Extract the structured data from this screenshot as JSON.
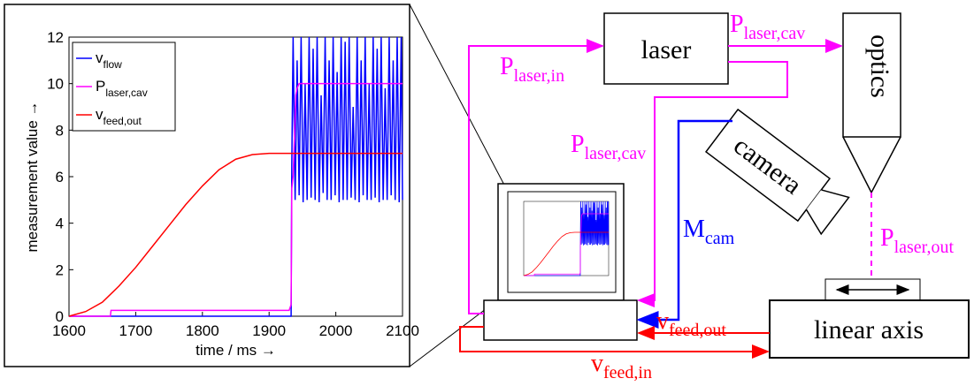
{
  "chart_data": {
    "type": "line",
    "xlabel": "time / ms →",
    "ylabel": "measurement value →",
    "xlim": [
      1600,
      2100
    ],
    "xticks": [
      1600,
      1700,
      1800,
      1900,
      2000,
      2100
    ],
    "ylim": [
      0,
      12
    ],
    "yticks": [
      0,
      2,
      4,
      6,
      8,
      10,
      12
    ],
    "legend": "upper left",
    "series": [
      {
        "name": {
          "text": "v",
          "sub": "flow"
        },
        "color": "#0000ff",
        "x": [
          1600,
          1933,
          1934,
          1936,
          1939,
          1942,
          1945,
          1948,
          1951,
          1954,
          1957,
          1960,
          1963,
          1966,
          1969,
          1972,
          1975,
          1978,
          1981,
          1984,
          1987,
          1990,
          1993,
          1996,
          1999,
          2002,
          2005,
          2008,
          2011,
          2014,
          2017,
          2020,
          2023,
          2026,
          2029,
          2032,
          2035,
          2038,
          2041,
          2044,
          2047,
          2050,
          2053,
          2056,
          2059,
          2062,
          2065,
          2068,
          2071,
          2074,
          2077,
          2080,
          2083,
          2086,
          2089,
          2092,
          2095,
          2098,
          2100
        ],
        "values": [
          0,
          0,
          6.5,
          12,
          5,
          11,
          5.2,
          12,
          4.9,
          10,
          5,
          12,
          5.1,
          11.5,
          5,
          12,
          4.9,
          9.5,
          5.3,
          12,
          5,
          11,
          5,
          12,
          5.2,
          10.5,
          4.9,
          12,
          5,
          11.8,
          5,
          12,
          5.1,
          9,
          5,
          12,
          4.9,
          11,
          5.2,
          12,
          5,
          10,
          5,
          12,
          5.1,
          11.5,
          4.9,
          12,
          5,
          9.8,
          5,
          12,
          5.2,
          11,
          5,
          12,
          4.9,
          12,
          5
        ]
      },
      {
        "name": {
          "text": "P",
          "sub": "laser,cav"
        },
        "color": "#ff00ff",
        "x": [
          1600,
          1662,
          1663,
          1930,
          1933,
          1934,
          1936,
          1940,
          1942,
          1945,
          2100
        ],
        "values": [
          0,
          0,
          0.25,
          0.25,
          0.5,
          5.5,
          6,
          9.5,
          9.8,
          10,
          10
        ]
      },
      {
        "name": {
          "text": "v",
          "sub": "feed,out"
        },
        "color": "#ff0000",
        "x": [
          1600,
          1625,
          1650,
          1675,
          1700,
          1725,
          1750,
          1775,
          1800,
          1825,
          1850,
          1875,
          1900,
          1950,
          2000,
          2100
        ],
        "values": [
          0,
          0.2,
          0.6,
          1.3,
          2.1,
          3.0,
          3.9,
          4.8,
          5.6,
          6.3,
          6.75,
          6.95,
          7,
          7,
          7,
          7
        ]
      }
    ]
  },
  "diagram": {
    "laser": "laser",
    "optics": "optics",
    "camera": "camera",
    "linear_axis": "linear axis",
    "p_laser_in": {
      "text": "P",
      "sub": "laser,in"
    },
    "p_laser_cav_top": {
      "text": "P",
      "sub": "laser,cav"
    },
    "p_laser_cav_left": {
      "text": "P",
      "sub": "laser,cav"
    },
    "m_cam": {
      "text": "M",
      "sub": "cam"
    },
    "p_laser_out": {
      "text": "P",
      "sub": "laser,out"
    },
    "v_feed_out": {
      "text": "v",
      "sub": "feed,out"
    },
    "v_feed_in": {
      "text": "v",
      "sub": "feed,in"
    }
  }
}
